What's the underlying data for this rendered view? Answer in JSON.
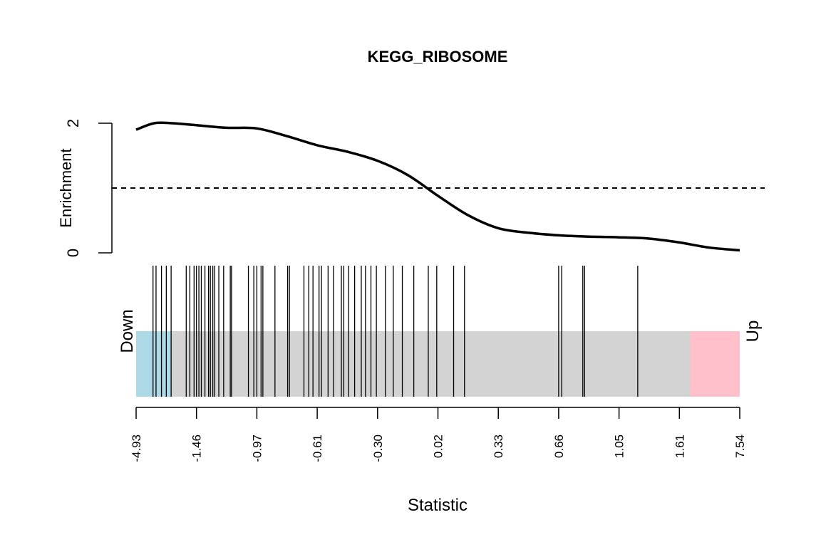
{
  "chart_data": {
    "type": "barcode-enrichment",
    "title": "KEGG_RIBOSOME",
    "xlabel": "Statistic",
    "ylabel": "Enrichment",
    "y_ticks": [
      "0",
      "2"
    ],
    "ylim": [
      0,
      2
    ],
    "reference_line": 1,
    "x_tick_labels": [
      "-4.93",
      "-1.46",
      "-0.97",
      "-0.61",
      "-0.30",
      "0.02",
      "0.33",
      "0.66",
      "1.05",
      "1.61",
      "7.54"
    ],
    "left_label": "Down",
    "right_label": "Up",
    "colors": {
      "down": "#add8e6",
      "middle": "#d3d3d3",
      "up": "#ffc0cb",
      "line": "#000000"
    },
    "down_region": [
      0,
      0.059
    ],
    "up_region": [
      0.918,
      1
    ],
    "enrichment_curve": {
      "x": [
        0,
        0.03,
        0.06,
        0.1,
        0.15,
        0.2,
        0.25,
        0.3,
        0.35,
        0.4,
        0.45,
        0.5,
        0.55,
        0.6,
        0.65,
        0.7,
        0.75,
        0.8,
        0.85,
        0.9,
        0.95,
        1
      ],
      "y": [
        1.9,
        2.0,
        2.0,
        1.97,
        1.93,
        1.92,
        1.8,
        1.66,
        1.56,
        1.42,
        1.2,
        0.88,
        0.58,
        0.38,
        0.31,
        0.27,
        0.25,
        0.24,
        0.22,
        0.16,
        0.08,
        0.04
      ]
    },
    "gene_positions": [
      0.028,
      0.033,
      0.042,
      0.05,
      0.058,
      0.083,
      0.089,
      0.096,
      0.1,
      0.104,
      0.108,
      0.114,
      0.12,
      0.123,
      0.127,
      0.13,
      0.137,
      0.145,
      0.156,
      0.158,
      0.186,
      0.195,
      0.2,
      0.207,
      0.21,
      0.23,
      0.251,
      0.254,
      0.278,
      0.286,
      0.293,
      0.303,
      0.307,
      0.318,
      0.327,
      0.34,
      0.344,
      0.352,
      0.362,
      0.373,
      0.38,
      0.389,
      0.398,
      0.413,
      0.426,
      0.441,
      0.46,
      0.484,
      0.498,
      0.526,
      0.544,
      0.7,
      0.705,
      0.74,
      0.743,
      0.831
    ]
  }
}
